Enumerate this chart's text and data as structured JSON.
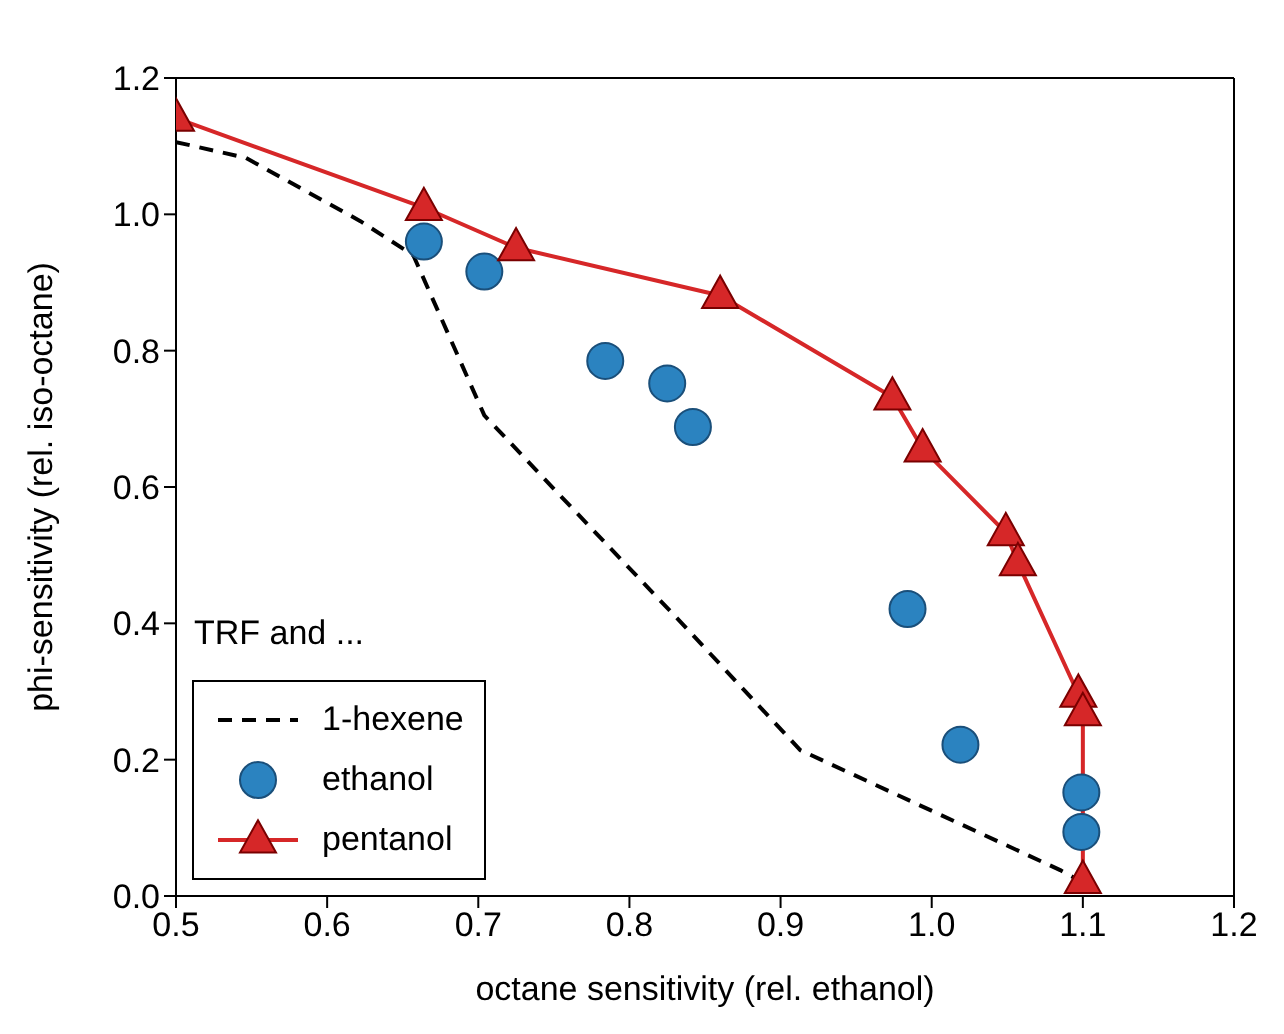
{
  "chart_data": {
    "type": "line",
    "xlabel": "octane sensitivity (rel. ethanol)",
    "ylabel": "phi-sensitivity (rel. iso-octane)",
    "legend_title": "TRF and ...",
    "legend": "bottom left",
    "xlim": [
      0.5,
      1.2
    ],
    "xticks": [
      0.5,
      0.6,
      0.7,
      0.8,
      0.9,
      {
        "value": 1,
        "label": "1.0"
      },
      1.1,
      1.2
    ],
    "ylim": [
      0,
      1.2
    ],
    "yticks": [
      {
        "value": 0,
        "label": "0.0"
      },
      0.2,
      0.4,
      0.6,
      0.8,
      {
        "value": 1,
        "label": "1.0"
      },
      1.2
    ],
    "series": [
      {
        "name": "1-hexene",
        "color": "#000000",
        "line_style": "dashed",
        "marker": "none",
        "x": [
          0.5,
          0.546,
          0.622,
          0.657,
          0.704,
          0.754,
          0.833,
          0.913,
          1.085,
          1.1
        ],
        "values": [
          1.106,
          1.083,
          0.99,
          0.94,
          0.705,
          0.588,
          0.404,
          0.214,
          0.038,
          0.02
        ]
      },
      {
        "name": "ethanol",
        "type": "scatter",
        "color": "#2b83c0",
        "marker": "circle",
        "x": [
          0.664,
          0.704,
          0.784,
          0.825,
          0.842,
          0.984,
          1.019,
          1.099,
          1.099
        ],
        "values": [
          0.96,
          0.916,
          0.785,
          0.752,
          0.688,
          0.421,
          0.222,
          0.152,
          0.094
        ]
      },
      {
        "name": "pentanol",
        "color": "#d62728",
        "line_style": "solid",
        "marker": "triangle",
        "x": [
          0.5,
          0.664,
          0.725,
          0.86,
          0.974,
          0.994,
          1.049,
          1.057,
          1.097,
          1.1,
          1.1
        ],
        "values": [
          1.141,
          1.01,
          0.951,
          0.881,
          0.732,
          0.656,
          0.533,
          0.489,
          0.296,
          0.269,
          0.023
        ]
      }
    ]
  }
}
